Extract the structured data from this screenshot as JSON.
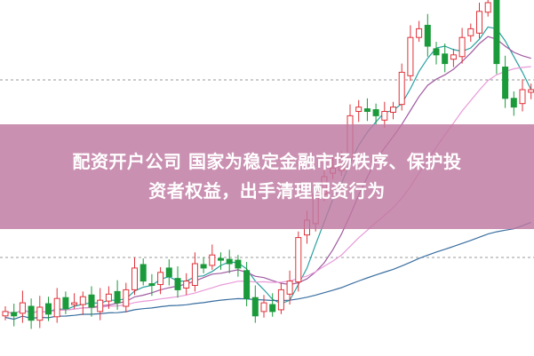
{
  "headline": {
    "line1": "配资开户公司 国家为稳定金融市场秩序、保护投",
    "line2": "资者权益，出手清理配资行为"
  },
  "colors": {
    "up": "#e0323a",
    "down": "#1a9a3a",
    "banner": "#be78a0",
    "ma5": "#2aa0a0",
    "ma10": "#a05aa0",
    "ma20": "#e89ad8",
    "ma60": "#3a6ea0"
  },
  "chart_data": {
    "type": "candlestick",
    "closes": [
      45,
      40,
      55,
      35,
      50,
      42,
      60,
      48,
      55,
      62,
      50,
      58,
      65,
      55,
      70,
      95,
      80,
      75,
      90,
      85,
      70,
      80,
      100,
      95,
      110,
      105,
      100,
      95,
      60,
      40,
      55,
      45,
      70,
      80,
      130,
      150,
      180,
      200,
      210,
      220,
      270,
      280,
      275,
      270,
      275,
      280,
      320,
      360,
      370,
      350,
      340,
      330,
      340,
      360,
      370,
      390,
      400,
      330,
      290,
      280,
      300,
      300
    ],
    "moving_averages": [
      5,
      10,
      20,
      60
    ],
    "grid": "dashed-horizontal"
  }
}
